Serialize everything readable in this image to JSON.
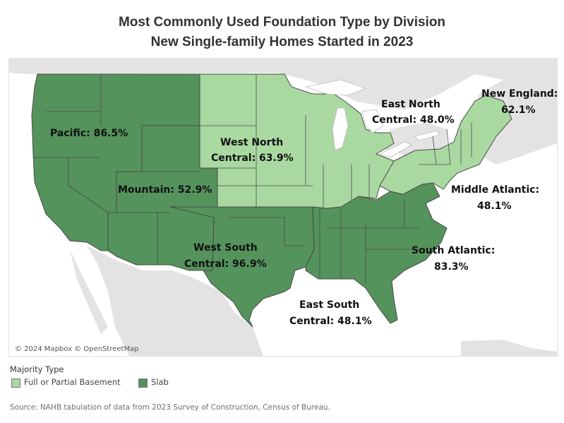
{
  "title": {
    "line1": "Most Commonly Used Foundation Type by Division",
    "line2": "New Single-family Homes Started in 2023"
  },
  "map": {
    "attribution": "© 2024 Mapbox © OpenStreetMap",
    "divisions": [
      {
        "key": "pacific",
        "line1": "Pacific: 86.5%",
        "line2": "",
        "share_pct": 86.5,
        "majority_type": "Slab"
      },
      {
        "key": "mountain",
        "line1": "Mountain: 52.9%",
        "line2": "",
        "share_pct": 52.9,
        "majority_type": "Slab"
      },
      {
        "key": "west_north_central",
        "line1": "West North",
        "line2": "Central: 63.9%",
        "share_pct": 63.9,
        "majority_type": "Full or Partial Basement"
      },
      {
        "key": "east_north_central",
        "line1": "East North",
        "line2": "Central: 48.0%",
        "share_pct": 48.0,
        "majority_type": "Full or Partial Basement"
      },
      {
        "key": "new_england",
        "line1": "New England:",
        "line2": "62.1%",
        "share_pct": 62.1,
        "majority_type": "Full or Partial Basement"
      },
      {
        "key": "middle_atlantic",
        "line1": "Middle Atlantic:",
        "line2": "48.1%",
        "share_pct": 48.1,
        "majority_type": "Full or Partial Basement"
      },
      {
        "key": "south_atlantic",
        "line1": "South Atlantic:",
        "line2": "83.3%",
        "share_pct": 83.3,
        "majority_type": "Slab"
      },
      {
        "key": "west_south_central",
        "line1": "West South",
        "line2": "Central: 96.9%",
        "share_pct": 96.9,
        "majority_type": "Slab"
      },
      {
        "key": "east_south_central",
        "line1": "East South",
        "line2": "Central: 48.1%",
        "share_pct": 48.1,
        "majority_type": "Slab"
      }
    ]
  },
  "legend": {
    "title": "Majority Type",
    "items": [
      {
        "label": "Full or Partial Basement",
        "color": "#a9d9a0"
      },
      {
        "label": "Slab",
        "color": "#54935c"
      }
    ]
  },
  "colors": {
    "basement": "#a9d9a0",
    "slab": "#54935c",
    "land": "#e3e3e3",
    "water": "#ffffff",
    "border": "#4a4a4a"
  },
  "source": "Source: NAHB tabulation of data from 2023 Survey of Construction, Census of Bureau."
}
